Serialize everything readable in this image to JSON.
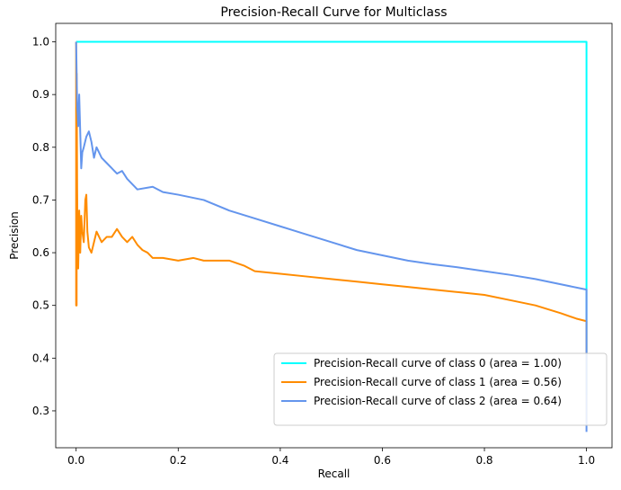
{
  "chart_data": {
    "type": "line",
    "title": "Precision-Recall Curve for Multiclass",
    "xlabel": "Recall",
    "ylabel": "Precision",
    "xlim": [
      -0.04,
      1.05
    ],
    "ylim": [
      0.23,
      1.035
    ],
    "xticks": [
      0.0,
      0.2,
      0.4,
      0.6,
      0.8,
      1.0
    ],
    "xtick_labels": [
      "0.0",
      "0.2",
      "0.4",
      "0.6",
      "0.8",
      "1.0"
    ],
    "yticks": [
      0.3,
      0.4,
      0.5,
      0.6,
      0.7,
      0.8,
      0.9,
      1.0
    ],
    "ytick_labels": [
      "0.3",
      "0.4",
      "0.5",
      "0.6",
      "0.7",
      "0.8",
      "0.9",
      "1.0"
    ],
    "grid": false,
    "legend_position": "lower-right",
    "series": [
      {
        "name": "Precision-Recall curve of class 0 (area = 1.00)",
        "color": "#00ffff",
        "x": [
          0.0,
          0.0,
          1.0,
          1.0
        ],
        "y": [
          1.0,
          1.0,
          1.0,
          0.33
        ]
      },
      {
        "name": "Precision-Recall curve of class 1 (area = 0.56)",
        "color": "#ff8c00",
        "x": [
          0.0,
          0.0,
          0.001,
          0.001,
          0.002,
          0.003,
          0.004,
          0.005,
          0.006,
          0.008,
          0.01,
          0.012,
          0.015,
          0.018,
          0.02,
          0.022,
          0.025,
          0.03,
          0.035,
          0.04,
          0.045,
          0.05,
          0.06,
          0.07,
          0.08,
          0.09,
          0.1,
          0.11,
          0.12,
          0.13,
          0.14,
          0.15,
          0.17,
          0.2,
          0.23,
          0.25,
          0.3,
          0.33,
          0.35,
          0.4,
          0.45,
          0.5,
          0.55,
          0.6,
          0.65,
          0.7,
          0.75,
          0.8,
          0.85,
          0.9,
          0.95,
          0.98,
          1.0,
          1.0
        ],
        "y": [
          1.0,
          0.5,
          0.5,
          0.94,
          0.72,
          0.6,
          0.57,
          0.62,
          0.68,
          0.6,
          0.67,
          0.64,
          0.62,
          0.7,
          0.71,
          0.64,
          0.61,
          0.6,
          0.62,
          0.64,
          0.63,
          0.62,
          0.63,
          0.63,
          0.645,
          0.63,
          0.62,
          0.63,
          0.615,
          0.605,
          0.6,
          0.59,
          0.59,
          0.585,
          0.59,
          0.585,
          0.585,
          0.575,
          0.565,
          0.56,
          0.555,
          0.55,
          0.545,
          0.54,
          0.535,
          0.53,
          0.525,
          0.52,
          0.51,
          0.5,
          0.485,
          0.475,
          0.47,
          0.28
        ]
      },
      {
        "name": "Precision-Recall curve of class 2 (area = 0.64)",
        "color": "#6495ed",
        "x": [
          0.0,
          0.002,
          0.004,
          0.006,
          0.008,
          0.01,
          0.012,
          0.015,
          0.02,
          0.025,
          0.03,
          0.035,
          0.04,
          0.05,
          0.06,
          0.07,
          0.08,
          0.09,
          0.1,
          0.12,
          0.15,
          0.17,
          0.2,
          0.25,
          0.3,
          0.35,
          0.4,
          0.45,
          0.5,
          0.55,
          0.6,
          0.65,
          0.7,
          0.75,
          0.8,
          0.85,
          0.9,
          0.95,
          1.0,
          1.0
        ],
        "y": [
          1.0,
          0.88,
          0.84,
          0.9,
          0.83,
          0.76,
          0.79,
          0.8,
          0.82,
          0.83,
          0.81,
          0.78,
          0.8,
          0.78,
          0.77,
          0.76,
          0.75,
          0.755,
          0.74,
          0.72,
          0.725,
          0.715,
          0.71,
          0.7,
          0.68,
          0.665,
          0.65,
          0.635,
          0.62,
          0.605,
          0.595,
          0.585,
          0.578,
          0.572,
          0.565,
          0.558,
          0.55,
          0.54,
          0.53,
          0.26
        ]
      }
    ]
  }
}
